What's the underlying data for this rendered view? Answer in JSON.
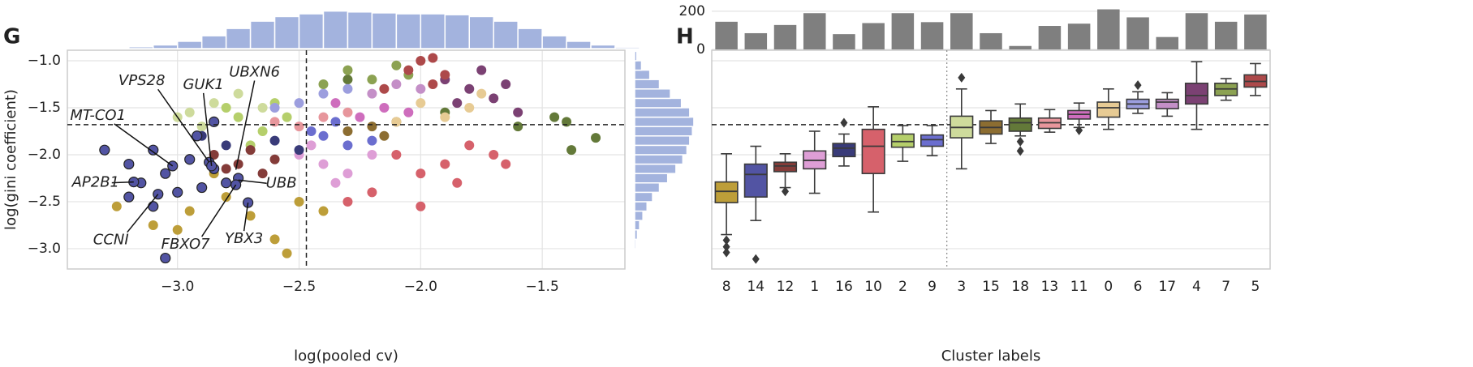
{
  "chart_data": [
    {
      "type": "scatter",
      "panel_label": "G",
      "xlabel": "log(pooled cv)",
      "ylabel": "log(gini coefficient)",
      "xlim": [
        -3.453,
        -1.16
      ],
      "ylim": [
        -3.216,
        -0.888
      ],
      "xticks": [
        {
          "value": -3.0,
          "label": "−3.0"
        },
        {
          "value": -2.5,
          "label": "−2.5"
        },
        {
          "value": -2.0,
          "label": "−2.0"
        },
        {
          "value": -1.5,
          "label": "−1.5"
        }
      ],
      "yticks": [
        {
          "value": -1.0,
          "label": "−1.0"
        },
        {
          "value": -1.5,
          "label": "−1.5"
        },
        {
          "value": -2.0,
          "label": "−2.0"
        },
        {
          "value": -2.5,
          "label": "−2.5"
        },
        {
          "value": -3.0,
          "label": "−3.0"
        }
      ],
      "grid": true,
      "hline": -1.68,
      "vline": -2.47,
      "series": [
        {
          "color": "#bd9e39",
          "x": [
            -3.25,
            -3.1,
            -2.95,
            -2.8,
            -2.7,
            -2.6,
            -2.55,
            -3.0,
            -2.85,
            -3.2,
            -2.5,
            -2.4
          ],
          "y": [
            -2.55,
            -2.75,
            -2.6,
            -2.45,
            -2.65,
            -2.9,
            -3.05,
            -2.8,
            -2.2,
            -2.1,
            -2.5,
            -2.6
          ]
        },
        {
          "color": "#cedb9c",
          "x": [
            -2.95,
            -2.85,
            -2.75,
            -2.9,
            -2.65,
            -3.0
          ],
          "y": [
            -1.55,
            -1.45,
            -1.35,
            -1.7,
            -1.5,
            -1.6
          ]
        },
        {
          "color": "#b5cf6b",
          "x": [
            -2.75,
            -2.65,
            -2.55,
            -2.7,
            -2.8,
            -2.6
          ],
          "y": [
            -1.6,
            -1.75,
            -1.6,
            -1.9,
            -1.5,
            -1.45
          ]
        },
        {
          "color": "#843c39",
          "x": [
            -2.85,
            -2.75,
            -2.7,
            -2.6,
            -2.65,
            -2.8
          ],
          "y": [
            -2.0,
            -2.1,
            -1.95,
            -2.05,
            -2.2,
            -2.15
          ]
        },
        {
          "color": "#de9ed6",
          "x": [
            -2.5,
            -2.4,
            -2.3,
            -2.2,
            -2.35,
            -2.45
          ],
          "y": [
            -2.0,
            -2.1,
            -2.2,
            -2.0,
            -2.3,
            -1.9
          ]
        },
        {
          "color": "#393b79",
          "x": [
            -2.9,
            -2.8,
            -2.6,
            -2.5
          ],
          "y": [
            -1.8,
            -1.9,
            -1.85,
            -1.95
          ]
        },
        {
          "color": "#d6616b",
          "x": [
            -2.1,
            -2.0,
            -1.9,
            -2.2,
            -2.0,
            -1.8,
            -1.7,
            -2.3,
            -1.85,
            -1.65
          ],
          "y": [
            -2.0,
            -2.2,
            -2.1,
            -2.4,
            -2.55,
            -1.9,
            -2.0,
            -2.5,
            -2.3,
            -2.1
          ]
        },
        {
          "color": "#6b6ecf",
          "x": [
            -2.4,
            -2.3,
            -2.45,
            -2.2,
            -2.35
          ],
          "y": [
            -1.8,
            -1.9,
            -1.75,
            -1.85,
            -1.65
          ]
        },
        {
          "color": "#8c6d31",
          "x": [
            -2.2,
            -2.1,
            -2.3,
            -2.15
          ],
          "y": [
            -1.7,
            -1.65,
            -1.75,
            -1.8
          ]
        },
        {
          "color": "#637939",
          "x": [
            -1.9,
            -1.6,
            -1.45,
            -1.4,
            -1.38,
            -1.28,
            -2.3
          ],
          "y": [
            -1.55,
            -1.7,
            -1.6,
            -1.65,
            -1.95,
            -1.82,
            -1.2
          ]
        },
        {
          "color": "#e7969c",
          "x": [
            -2.5,
            -2.4,
            -2.6,
            -2.3
          ],
          "y": [
            -1.7,
            -1.6,
            -1.65,
            -1.55
          ]
        },
        {
          "color": "#ce6dbd",
          "x": [
            -2.25,
            -2.15,
            -2.05,
            -2.35
          ],
          "y": [
            -1.6,
            -1.5,
            -1.55,
            -1.45
          ]
        },
        {
          "color": "#e7cb94",
          "x": [
            -2.0,
            -1.9,
            -1.8,
            -2.1,
            -1.75
          ],
          "y": [
            -1.45,
            -1.6,
            -1.5,
            -1.65,
            -1.35
          ]
        },
        {
          "color": "#9c9ede",
          "x": [
            -2.5,
            -2.4,
            -2.3,
            -2.6
          ],
          "y": [
            -1.45,
            -1.35,
            -1.3,
            -1.5
          ]
        },
        {
          "color": "#c48fc7",
          "x": [
            -2.2,
            -2.1,
            -2.0
          ],
          "y": [
            -1.35,
            -1.25,
            -1.3
          ]
        },
        {
          "color": "#7b4173",
          "x": [
            -1.9,
            -1.8,
            -1.7,
            -1.6,
            -1.75,
            -1.85,
            -1.65
          ],
          "y": [
            -1.2,
            -1.3,
            -1.4,
            -1.55,
            -1.1,
            -1.45,
            -1.25
          ]
        },
        {
          "color": "#8ca252",
          "x": [
            -2.4,
            -2.3,
            -2.2,
            -2.1,
            -2.05
          ],
          "y": [
            -1.25,
            -1.1,
            -1.2,
            -1.05,
            -1.15
          ]
        },
        {
          "color": "#ad494a",
          "x": [
            -2.05,
            -1.95,
            -2.0,
            -1.9,
            -2.15,
            -1.95
          ],
          "y": [
            -1.1,
            -1.25,
            -1.0,
            -1.15,
            -1.3,
            -0.97
          ]
        },
        {
          "color": "#5254a3",
          "edgecolor": "#222222",
          "x": [
            -3.3,
            -3.2,
            -3.15,
            -3.1,
            -3.05,
            -3.0,
            -2.95,
            -2.9,
            -2.85,
            -2.8,
            -3.05,
            -3.2,
            -2.75,
            -3.1,
            -2.92,
            -2.85,
            -3.02,
            -3.18,
            -3.08,
            -2.76,
            -2.71,
            -2.87,
            -2.86
          ],
          "y": [
            -1.95,
            -2.1,
            -2.3,
            -2.55,
            -2.2,
            -2.4,
            -2.05,
            -2.35,
            -2.15,
            -2.3,
            -3.1,
            -2.45,
            -2.25,
            -1.95,
            -1.8,
            -1.65,
            -2.12,
            -2.29,
            -2.42,
            -2.32,
            -2.51,
            -2.08,
            -2.12
          ]
        }
      ],
      "annotations": [
        {
          "text": "VPS28",
          "x": -2.87,
          "y": -2.08
        },
        {
          "text": "GUK1",
          "x": -2.86,
          "y": -2.12
        },
        {
          "text": "UBXN6",
          "x": -2.76,
          "y": -2.16
        },
        {
          "text": "MT-CO1",
          "x": -3.02,
          "y": -2.12
        },
        {
          "text": "AP2B1",
          "x": -3.18,
          "y": -2.29
        },
        {
          "text": "UBB",
          "x": -2.75,
          "y": -2.27
        },
        {
          "text": "CCNI",
          "x": -3.08,
          "y": -2.42
        },
        {
          "text": "FBXO7",
          "x": -2.76,
          "y": -2.32
        },
        {
          "text": "YBX3",
          "x": -2.71,
          "y": -2.51
        }
      ]
    },
    {
      "type": "histogram",
      "orientation": "vertical",
      "color": "#a3b3de",
      "bins": [
        -3.3,
        -3.2,
        -3.1,
        -3.0,
        -2.9,
        -2.8,
        -2.7,
        -2.6,
        -2.5,
        -2.4,
        -2.3,
        -2.2,
        -2.1,
        -2.0,
        -1.9,
        -1.8,
        -1.7,
        -1.6,
        -1.5,
        -1.4,
        -1.3,
        -1.2,
        -1.1
      ],
      "values": [
        5,
        10,
        20,
        40,
        70,
        110,
        150,
        175,
        190,
        205,
        200,
        195,
        190,
        190,
        185,
        175,
        150,
        110,
        70,
        40,
        20,
        8
      ],
      "ylim": [
        0,
        230
      ]
    },
    {
      "type": "histogram",
      "orientation": "horizontal",
      "color": "#a3b3de",
      "bins": [
        -3.1,
        -3.0,
        -2.9,
        -2.8,
        -2.7,
        -2.6,
        -2.5,
        -2.4,
        -2.3,
        -2.2,
        -2.1,
        -2.0,
        -1.9,
        -1.8,
        -1.7,
        -1.6,
        -1.5,
        -1.4,
        -1.3,
        -1.2,
        -1.1,
        -1.0,
        -0.9
      ],
      "values": [
        3,
        5,
        10,
        18,
        30,
        45,
        65,
        90,
        120,
        150,
        175,
        190,
        200,
        210,
        215,
        200,
        170,
        130,
        90,
        55,
        25,
        8
      ],
      "xlim": [
        0,
        230
      ]
    },
    {
      "type": "bar",
      "panel_label": "H",
      "color": "#7f7f7f",
      "ylim": [
        0,
        225
      ],
      "yticks": [
        0,
        200
      ],
      "grid": true,
      "categories": [
        "8",
        "14",
        "12",
        "1",
        "16",
        "10",
        "2",
        "9",
        "3",
        "15",
        "18",
        "13",
        "11",
        "0",
        "6",
        "17",
        "4",
        "7",
        "5"
      ],
      "values": [
        145,
        85,
        128,
        190,
        80,
        138,
        190,
        143,
        190,
        85,
        18,
        123,
        135,
        210,
        168,
        65,
        190,
        145,
        183
      ]
    },
    {
      "type": "box",
      "xlabel": "Cluster labels",
      "ylim": [
        -3.216,
        -0.888
      ],
      "yticks": [
        -1.0,
        -1.5,
        -2.0,
        -2.5,
        -3.0
      ],
      "show_ytick_labels": false,
      "grid": true,
      "hline": -1.68,
      "divider_index": 8,
      "categories": [
        "8",
        "14",
        "12",
        "1",
        "16",
        "10",
        "2",
        "9",
        "3",
        "15",
        "18",
        "13",
        "11",
        "0",
        "6",
        "17",
        "4",
        "7",
        "5"
      ],
      "colors": [
        "#bd9e39",
        "#5254a3",
        "#843c39",
        "#de9ed6",
        "#393b79",
        "#d6616b",
        "#b5cf6b",
        "#6b6ecf",
        "#cedb9c",
        "#8c6d31",
        "#637939",
        "#e7969c",
        "#ce6dbd",
        "#e7cb94",
        "#9c9ede",
        "#c48fc7",
        "#7b4173",
        "#8ca252",
        "#ad494a"
      ],
      "min": [
        -2.85,
        -2.7,
        -2.35,
        -2.41,
        -2.12,
        -2.61,
        -2.07,
        -2.01,
        -2.15,
        -1.88,
        -1.8,
        -1.76,
        -1.71,
        -1.73,
        -1.56,
        -1.59,
        -1.73,
        -1.42,
        -1.37
      ],
      "q1": [
        -2.51,
        -2.45,
        -2.18,
        -2.15,
        -2.02,
        -2.2,
        -1.92,
        -1.91,
        -1.82,
        -1.78,
        -1.75,
        -1.72,
        -1.62,
        -1.6,
        -1.51,
        -1.51,
        -1.46,
        -1.37,
        -1.28
      ],
      "median": [
        -2.39,
        -2.21,
        -2.12,
        -2.06,
        -1.93,
        -1.91,
        -1.86,
        -1.84,
        -1.71,
        -1.71,
        -1.66,
        -1.66,
        -1.57,
        -1.5,
        -1.46,
        -1.44,
        -1.37,
        -1.3,
        -1.22
      ],
      "q3": [
        -2.29,
        -2.1,
        -2.08,
        -1.96,
        -1.88,
        -1.73,
        -1.78,
        -1.79,
        -1.59,
        -1.64,
        -1.61,
        -1.61,
        -1.53,
        -1.44,
        -1.41,
        -1.41,
        -1.24,
        -1.24,
        -1.15
      ],
      "max": [
        -1.99,
        -1.91,
        -1.99,
        -1.75,
        -1.78,
        -1.49,
        -1.69,
        -1.69,
        -1.3,
        -1.53,
        -1.46,
        -1.52,
        -1.45,
        -1.3,
        -1.33,
        -1.34,
        -1.01,
        -1.19,
        -1.03
      ],
      "outliers": [
        [
          -2.91,
          -2.98,
          -3.04
        ],
        [
          -3.11
        ],
        [
          -2.39
        ],
        [],
        [
          -1.66
        ],
        [],
        [],
        [],
        [
          -1.18
        ],
        [],
        [
          -1.86,
          -1.96
        ],
        [],
        [
          -1.74
        ],
        [],
        [
          -1.26
        ],
        [],
        [],
        [],
        []
      ]
    }
  ]
}
